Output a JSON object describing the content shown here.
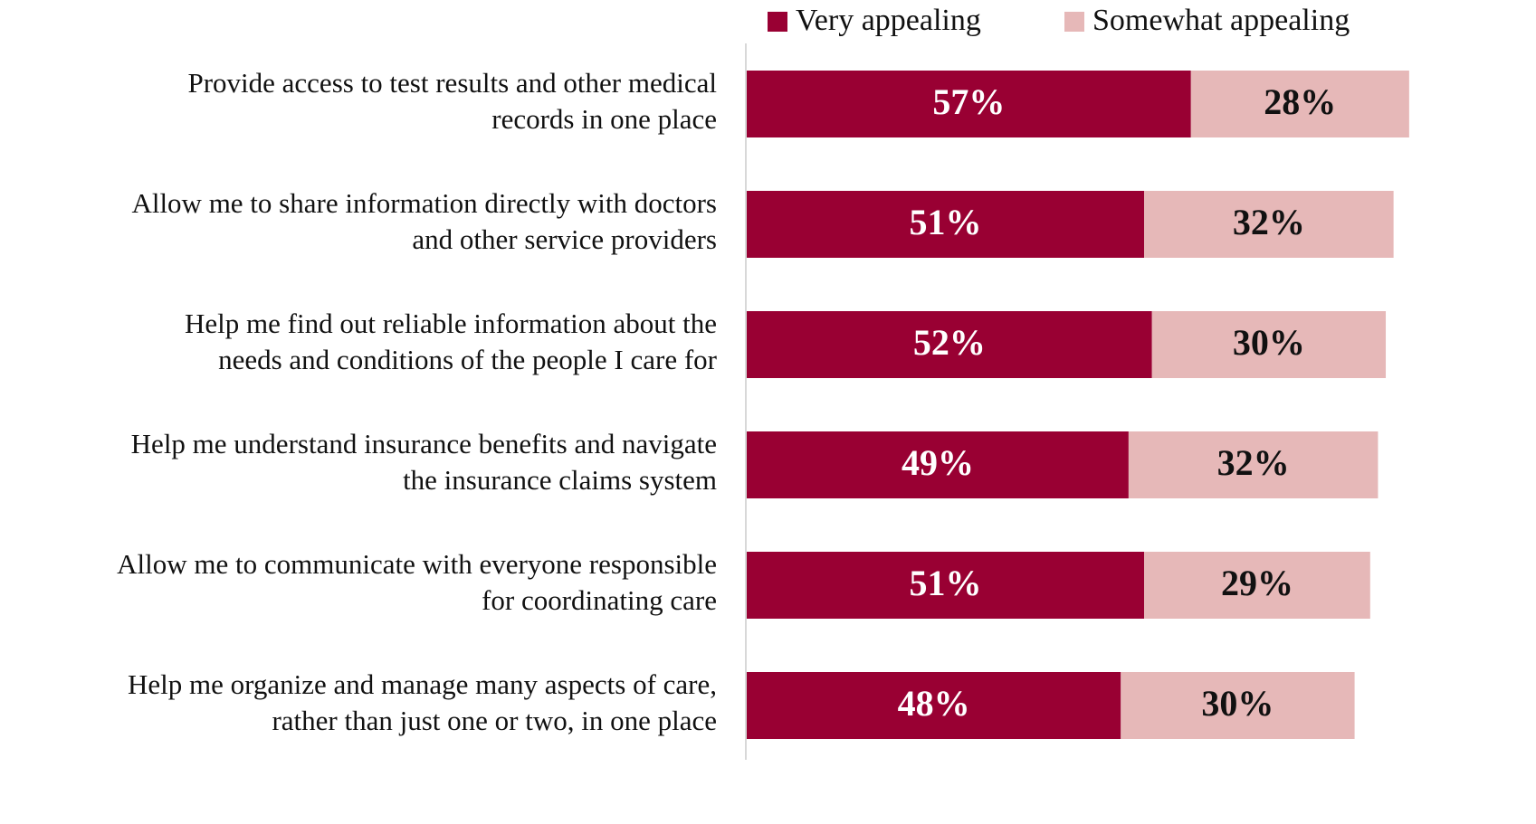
{
  "chart_data": {
    "type": "stacked-bar-horizontal",
    "categories": [
      "Provide access to test results and other medical\nrecords in one place",
      "Allow me to share information directly with doctors\nand other service providers",
      "Help me find out reliable information about the\nneeds and conditions of the people I care for",
      "Help me understand insurance benefits and navigate\nthe insurance claims system",
      "Allow me to communicate with everyone responsible\nfor coordinating care",
      "Help me organize and manage many aspects of care,\nrather than just one or two, in one place"
    ],
    "series": [
      {
        "name": "Very appealing",
        "color": "#990033",
        "label_color": "#ffffff",
        "values": [
          57,
          51,
          52,
          49,
          51,
          48
        ],
        "value_labels": [
          "57%",
          "51%",
          "52%",
          "49%",
          "51%",
          "48%"
        ]
      },
      {
        "name": "Somewhat appealing",
        "color": "#e6b8b8",
        "label_color": "#111111",
        "values": [
          28,
          32,
          30,
          32,
          29,
          30
        ],
        "value_labels": [
          "28%",
          "32%",
          "30%",
          "32%",
          "29%",
          "30%"
        ]
      }
    ],
    "xlim": [
      0,
      100
    ],
    "legend": "top-right"
  }
}
